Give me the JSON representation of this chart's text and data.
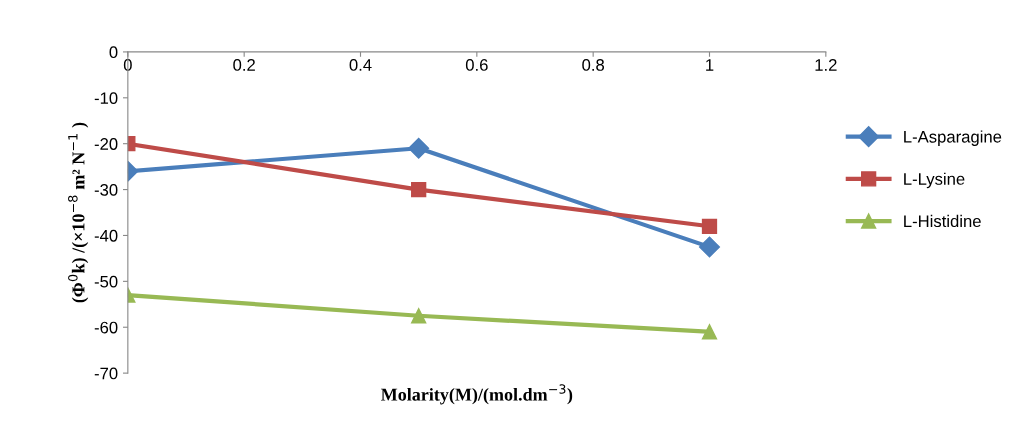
{
  "chart_data": {
    "type": "line",
    "xlabel": "Molarity(M)/(mol.dm$^{−3}$)",
    "ylabel": "(Φ$^{0}$k) /(×10$^{−8}$ m² N$^{−1}$ )",
    "x": [
      0,
      0.5,
      1
    ],
    "series": [
      {
        "name": "L-Asparagine",
        "color": "#4a7ebb",
        "marker": "diamond",
        "values": [
          -26,
          -21,
          -42.5
        ]
      },
      {
        "name": "L-Lysine",
        "color": "#be4b48",
        "marker": "square",
        "values": [
          -20,
          -30,
          -38
        ]
      },
      {
        "name": "L-Histidine",
        "color": "#98b954",
        "marker": "triangle",
        "values": [
          -53,
          -57.5,
          -61
        ]
      }
    ],
    "xlim": [
      0,
      1.2
    ],
    "xticks": [
      0,
      0.2,
      0.4,
      0.6,
      0.8,
      1,
      1.2
    ],
    "ylim": [
      -70,
      0
    ],
    "yticks": [
      0,
      -10,
      -20,
      -30,
      -40,
      -50,
      -60,
      -70
    ],
    "grid": false,
    "legend": "right",
    "line_style": "solid"
  }
}
